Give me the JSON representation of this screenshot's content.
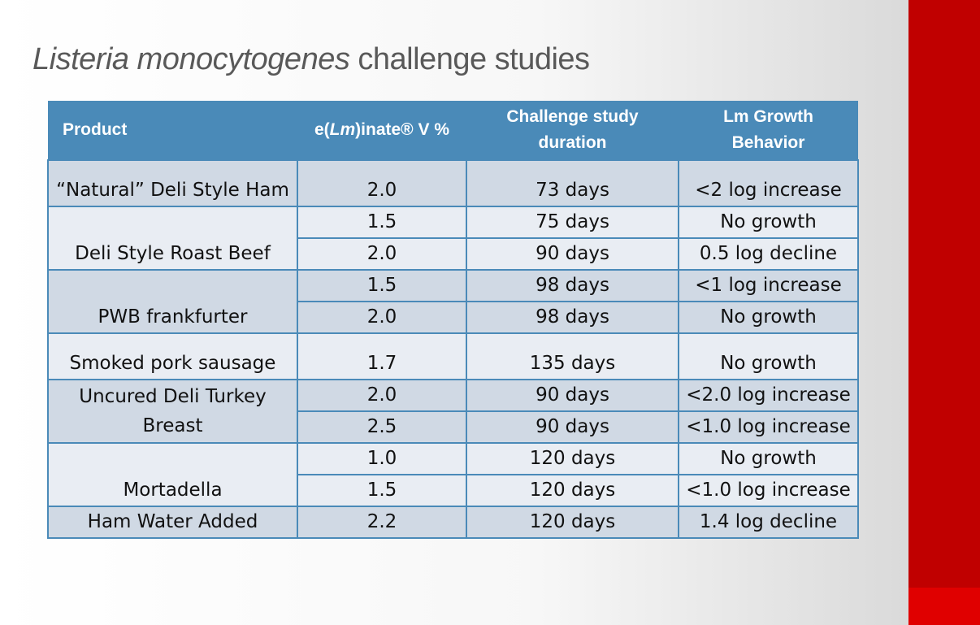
{
  "title": {
    "italic": "Listeria monocytogenes",
    "normal": "challenge studies"
  },
  "table": {
    "header": [
      "Product",
      {
        "prefix": "e(",
        "italic": "Lm",
        "suffix": ")inate® V %"
      },
      "Challenge study duration",
      "Lm Growth Behavior"
    ],
    "groups": [
      {
        "product": "“Natural” Deli Style Ham",
        "rows": [
          [
            "2.0",
            "73 days",
            "<2 log increase"
          ]
        ]
      },
      {
        "product": "Deli Style Roast Beef",
        "rows": [
          [
            "1.5",
            "75 days",
            "No growth"
          ],
          [
            "2.0",
            "90 days",
            "0.5 log decline"
          ]
        ]
      },
      {
        "product": "PWB frankfurter",
        "rows": [
          [
            "1.5",
            "98 days",
            "<1 log increase"
          ],
          [
            "2.0",
            "98 days",
            "No growth"
          ]
        ]
      },
      {
        "product": "Smoked pork sausage",
        "rows": [
          [
            "1.7",
            "135 days",
            "No growth"
          ]
        ]
      },
      {
        "product": "Uncured Deli Turkey Breast",
        "rows": [
          [
            "2.0",
            "90 days",
            "<2.0 log increase"
          ],
          [
            "2.5",
            "90 days",
            "<1.0 log increase"
          ]
        ]
      },
      {
        "product": "Mortadella",
        "rows": [
          [
            "1.0",
            "120 days",
            "No growth"
          ],
          [
            "1.5",
            "120 days",
            "<1.0 log increase"
          ]
        ]
      },
      {
        "product": "Ham Water Added",
        "rows": [
          [
            "2.2",
            "120 days",
            "1.4 log decline"
          ]
        ]
      }
    ]
  }
}
